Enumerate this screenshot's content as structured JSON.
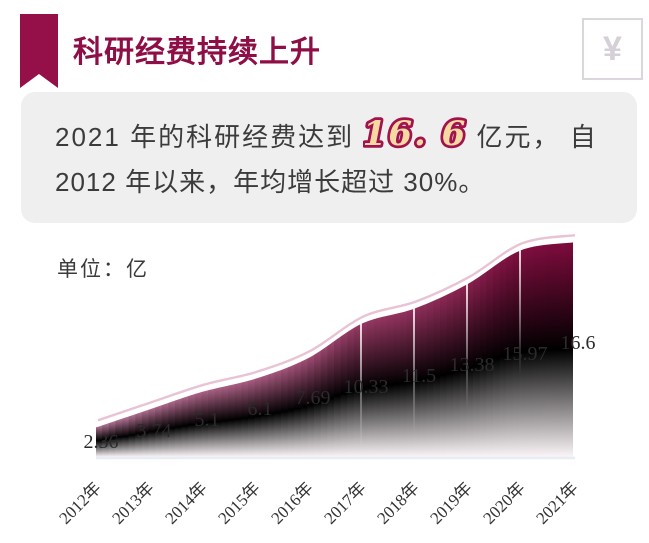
{
  "header": {
    "title": "科研经费持续上升",
    "currency_symbol": "¥"
  },
  "summary": {
    "line1_pre": "2021 年的科研经费达到",
    "highlight": "16. 6",
    "line1_post": "亿元， 自",
    "line2": "2012 年以来，年均增长超过 30%。"
  },
  "chart_data": {
    "type": "area",
    "title": "科研经费持续上升",
    "categories": [
      "2012年",
      "2013年",
      "2014年",
      "2015年",
      "2016年",
      "2017年",
      "2018年",
      "2019年",
      "2020年",
      "2021年"
    ],
    "values": [
      2.36,
      3.74,
      5.1,
      6.1,
      7.69,
      10.33,
      11.5,
      13.38,
      15.97,
      16.6
    ],
    "xlabel": "",
    "ylabel": "单位：亿",
    "ylim": [
      0,
      17.5
    ],
    "grid": false,
    "legend": "none",
    "colors": {
      "accent": "#951049",
      "title": "#8E0E46",
      "highlight_fill": "#F5D9A3",
      "highlight_stroke": "#A2134E",
      "area_top_dark": "#7E0A3C",
      "area_top_light": "#CA8AAC",
      "area_bottom": "#FBF5F8",
      "halo": "#E5BCD0",
      "top_edge": "#FFFFFF",
      "baseline": "#E7EEF3",
      "label_text": "#2B2B2B"
    }
  }
}
